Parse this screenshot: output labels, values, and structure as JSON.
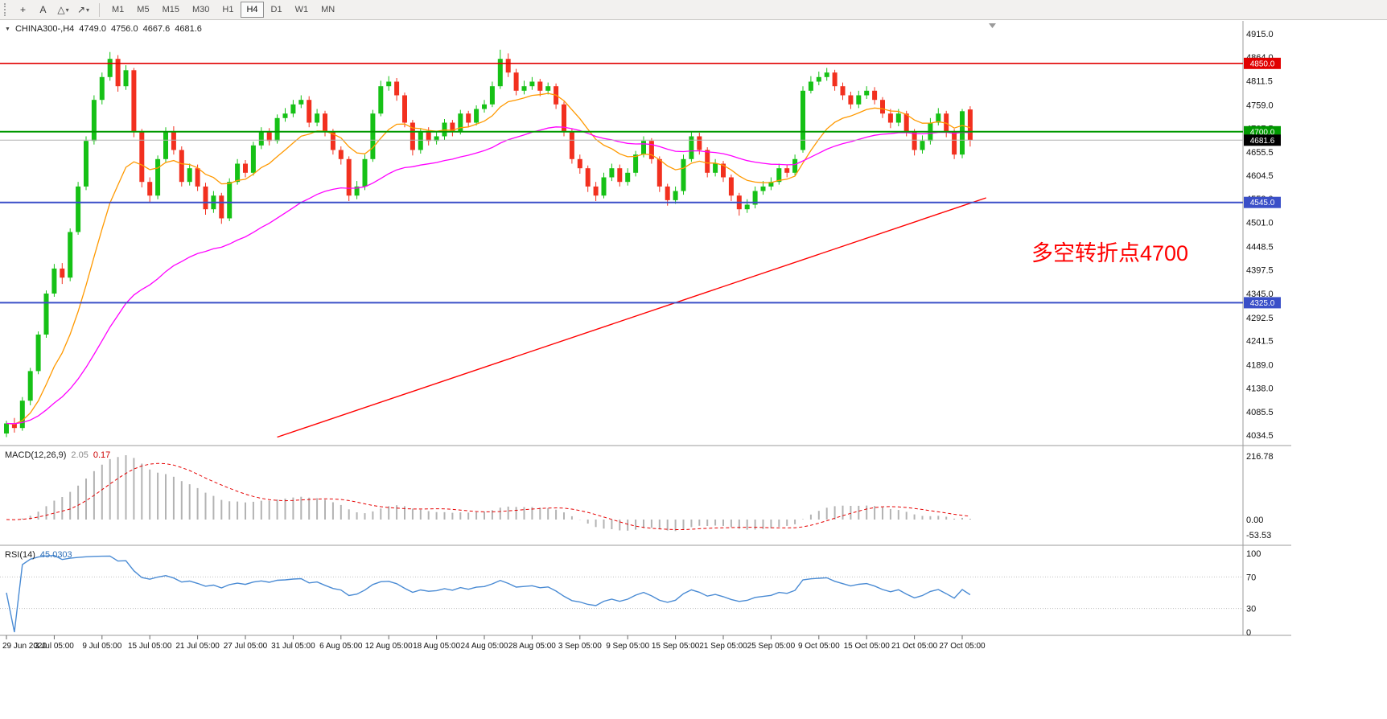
{
  "toolbar": {
    "tools": [
      {
        "name": "crosshair-tool",
        "icon": "crosshair-icon",
        "glyph": "+",
        "dropdown": false
      },
      {
        "name": "text-tool",
        "icon": "text-label-icon",
        "glyph": "A",
        "dropdown": false
      },
      {
        "name": "shapes-tool",
        "icon": "shapes-icon",
        "glyph": "△",
        "dropdown": true
      },
      {
        "name": "arrows-tool",
        "icon": "arrow-icon",
        "glyph": "↗",
        "dropdown": true
      }
    ],
    "timeframes": [
      "M1",
      "M5",
      "M15",
      "M30",
      "H1",
      "H4",
      "D1",
      "W1",
      "MN"
    ],
    "active_timeframe": "H4"
  },
  "chart": {
    "header": {
      "symbol": "CHINA300-,H4",
      "open": "4749.0",
      "high": "4756.0",
      "low": "4667.6",
      "close": "4681.6"
    },
    "annotation": {
      "text": "多空转折点4700",
      "color": "#ff0000"
    }
  },
  "indicators": {
    "macd": {
      "title": "MACD(12,26,9)",
      "value_main": "2.05",
      "value_signal": "0.17",
      "axis_labels": [
        "216.78",
        "0.00",
        "-53.53"
      ],
      "histogram_color": "#b3b3b3",
      "signal_color": "#e60000"
    },
    "rsi": {
      "title": "RSI(14)",
      "value": "45.0303",
      "axis_labels": [
        "100",
        "70",
        "30",
        "0"
      ],
      "levels": [
        70,
        30
      ],
      "line_color": "#4a8bd4",
      "level_color": "#c0c0c0"
    }
  },
  "chart_data": {
    "type": "candlestick",
    "symbol": "CHINA300-",
    "timeframe": "H4",
    "up_color": "#16c116",
    "down_color": "#f2301f",
    "ylim": [
      4015,
      4940
    ],
    "price_ticks": [
      4915.0,
      4864.0,
      4811.5,
      4759.0,
      4707.5,
      4655.5,
      4604.5,
      4553.0,
      4501.0,
      4448.5,
      4397.5,
      4345.0,
      4292.5,
      4241.5,
      4189.0,
      4138.0,
      4085.5,
      4034.5
    ],
    "time_labels": [
      "29 Jun 2020",
      "3 Jul 05:00",
      "9 Jul 05:00",
      "15 Jul 05:00",
      "21 Jul 05:00",
      "27 Jul 05:00",
      "31 Jul 05:00",
      "6 Aug 05:00",
      "12 Aug 05:00",
      "18 Aug 05:00",
      "24 Aug 05:00",
      "28 Aug 05:00",
      "3 Sep 05:00",
      "9 Sep 05:00",
      "15 Sep 05:00",
      "21 Sep 05:00",
      "25 Sep 05:00",
      "9 Oct 05:00",
      "15 Oct 05:00",
      "21 Oct 05:00",
      "27 Oct 05:00"
    ],
    "candles_per_label": 6,
    "levels": [
      {
        "price": 4850.0,
        "label": "4850.0",
        "color": "#e10000",
        "width": 1.6
      },
      {
        "price": 4700.0,
        "label": "4700.0",
        "color": "#009900",
        "width": 2
      },
      {
        "price": 4545.0,
        "label": "4545.0",
        "color": "#3a4fc8",
        "width": 2
      },
      {
        "price": 4325.0,
        "label": "4325.0",
        "color": "#3a4fc8",
        "width": 2
      }
    ],
    "current_price": {
      "value": 4681.6,
      "label": "4681.6",
      "line_color": "#b0b0b0",
      "badge_color": "#000000"
    },
    "ma_fast": {
      "type": "ema",
      "period": 12,
      "color": "#ff9900"
    },
    "ma_slow": {
      "type": "ema",
      "period": 40,
      "color": "#ff00ff"
    },
    "trendline": {
      "color": "#ff0000",
      "from_index": 34,
      "from_price": 4030,
      "to_index": 123,
      "to_price": 4555
    },
    "ohlc": [
      [
        4038,
        4066,
        4030,
        4060
      ],
      [
        4060,
        4072,
        4040,
        4050
      ],
      [
        4050,
        4118,
        4044,
        4110
      ],
      [
        4110,
        4182,
        4100,
        4175
      ],
      [
        4175,
        4262,
        4168,
        4255
      ],
      [
        4255,
        4352,
        4248,
        4345
      ],
      [
        4345,
        4410,
        4338,
        4400
      ],
      [
        4400,
        4412,
        4366,
        4380
      ],
      [
        4380,
        4488,
        4372,
        4480
      ],
      [
        4480,
        4590,
        4474,
        4580
      ],
      [
        4580,
        4690,
        4572,
        4680
      ],
      [
        4680,
        4780,
        4672,
        4770
      ],
      [
        4770,
        4830,
        4760,
        4820
      ],
      [
        4820,
        4875,
        4812,
        4860
      ],
      [
        4860,
        4868,
        4788,
        4800
      ],
      [
        4800,
        4846,
        4792,
        4835
      ],
      [
        4835,
        4840,
        4688,
        4700
      ],
      [
        4700,
        4706,
        4578,
        4590
      ],
      [
        4590,
        4600,
        4545,
        4560
      ],
      [
        4560,
        4648,
        4552,
        4640
      ],
      [
        4640,
        4710,
        4632,
        4700
      ],
      [
        4700,
        4712,
        4650,
        4660
      ],
      [
        4660,
        4668,
        4580,
        4590
      ],
      [
        4590,
        4630,
        4582,
        4620
      ],
      [
        4620,
        4628,
        4570,
        4580
      ],
      [
        4580,
        4588,
        4518,
        4530
      ],
      [
        4530,
        4570,
        4522,
        4560
      ],
      [
        4560,
        4566,
        4498,
        4510
      ],
      [
        4510,
        4598,
        4504,
        4590
      ],
      [
        4590,
        4640,
        4584,
        4630
      ],
      [
        4630,
        4638,
        4600,
        4610
      ],
      [
        4610,
        4678,
        4604,
        4670
      ],
      [
        4670,
        4710,
        4662,
        4700
      ],
      [
        4700,
        4708,
        4670,
        4680
      ],
      [
        4680,
        4738,
        4674,
        4730
      ],
      [
        4730,
        4752,
        4722,
        4740
      ],
      [
        4740,
        4770,
        4732,
        4760
      ],
      [
        4760,
        4780,
        4752,
        4770
      ],
      [
        4770,
        4778,
        4710,
        4720
      ],
      [
        4720,
        4750,
        4712,
        4740
      ],
      [
        4740,
        4746,
        4690,
        4700
      ],
      [
        4700,
        4706,
        4650,
        4660
      ],
      [
        4660,
        4668,
        4628,
        4640
      ],
      [
        4640,
        4646,
        4548,
        4560
      ],
      [
        4560,
        4592,
        4552,
        4580
      ],
      [
        4580,
        4650,
        4572,
        4640
      ],
      [
        4640,
        4748,
        4634,
        4740
      ],
      [
        4740,
        4812,
        4734,
        4800
      ],
      [
        4800,
        4822,
        4790,
        4810
      ],
      [
        4810,
        4818,
        4768,
        4780
      ],
      [
        4780,
        4786,
        4710,
        4720
      ],
      [
        4720,
        4726,
        4648,
        4660
      ],
      [
        4660,
        4708,
        4652,
        4700
      ],
      [
        4700,
        4710,
        4670,
        4680
      ],
      [
        4680,
        4700,
        4672,
        4690
      ],
      [
        4690,
        4728,
        4682,
        4720
      ],
      [
        4720,
        4726,
        4690,
        4700
      ],
      [
        4700,
        4748,
        4694,
        4740
      ],
      [
        4740,
        4746,
        4710,
        4720
      ],
      [
        4720,
        4758,
        4714,
        4750
      ],
      [
        4750,
        4770,
        4742,
        4760
      ],
      [
        4760,
        4810,
        4754,
        4800
      ],
      [
        4800,
        4880,
        4794,
        4860
      ],
      [
        4860,
        4872,
        4820,
        4830
      ],
      [
        4830,
        4838,
        4780,
        4790
      ],
      [
        4790,
        4812,
        4782,
        4800
      ],
      [
        4800,
        4820,
        4792,
        4810
      ],
      [
        4810,
        4816,
        4778,
        4790
      ],
      [
        4790,
        4808,
        4782,
        4800
      ],
      [
        4800,
        4806,
        4750,
        4760
      ],
      [
        4760,
        4766,
        4690,
        4700
      ],
      [
        4700,
        4706,
        4630,
        4640
      ],
      [
        4640,
        4650,
        4608,
        4620
      ],
      [
        4620,
        4626,
        4568,
        4580
      ],
      [
        4580,
        4590,
        4548,
        4560
      ],
      [
        4560,
        4610,
        4554,
        4600
      ],
      [
        4600,
        4630,
        4592,
        4620
      ],
      [
        4620,
        4628,
        4580,
        4590
      ],
      [
        4590,
        4620,
        4582,
        4610
      ],
      [
        4610,
        4658,
        4602,
        4650
      ],
      [
        4650,
        4690,
        4644,
        4680
      ],
      [
        4680,
        4686,
        4630,
        4640
      ],
      [
        4640,
        4646,
        4568,
        4580
      ],
      [
        4580,
        4586,
        4538,
        4550
      ],
      [
        4550,
        4580,
        4542,
        4570
      ],
      [
        4570,
        4650,
        4562,
        4640
      ],
      [
        4640,
        4700,
        4634,
        4690
      ],
      [
        4690,
        4698,
        4650,
        4660
      ],
      [
        4660,
        4666,
        4600,
        4610
      ],
      [
        4610,
        4640,
        4602,
        4630
      ],
      [
        4630,
        4636,
        4590,
        4600
      ],
      [
        4600,
        4606,
        4548,
        4560
      ],
      [
        4560,
        4566,
        4516,
        4530
      ],
      [
        4530,
        4552,
        4522,
        4540
      ],
      [
        4540,
        4580,
        4532,
        4570
      ],
      [
        4570,
        4592,
        4562,
        4580
      ],
      [
        4580,
        4600,
        4572,
        4590
      ],
      [
        4590,
        4630,
        4584,
        4620
      ],
      [
        4620,
        4628,
        4600,
        4610
      ],
      [
        4610,
        4650,
        4604,
        4640
      ],
      [
        4660,
        4800,
        4654,
        4790
      ],
      [
        4790,
        4822,
        4784,
        4810
      ],
      [
        4810,
        4832,
        4802,
        4820
      ],
      [
        4820,
        4840,
        4812,
        4830
      ],
      [
        4830,
        4836,
        4790,
        4800
      ],
      [
        4800,
        4808,
        4770,
        4780
      ],
      [
        4780,
        4788,
        4750,
        4760
      ],
      [
        4760,
        4790,
        4752,
        4780
      ],
      [
        4780,
        4800,
        4772,
        4790
      ],
      [
        4790,
        4798,
        4760,
        4770
      ],
      [
        4770,
        4776,
        4730,
        4740
      ],
      [
        4740,
        4750,
        4708,
        4720
      ],
      [
        4720,
        4750,
        4712,
        4740
      ],
      [
        4740,
        4746,
        4690,
        4700
      ],
      [
        4700,
        4706,
        4648,
        4660
      ],
      [
        4660,
        4692,
        4652,
        4680
      ],
      [
        4680,
        4730,
        4672,
        4720
      ],
      [
        4720,
        4752,
        4714,
        4740
      ],
      [
        4740,
        4746,
        4688,
        4700
      ],
      [
        4700,
        4706,
        4640,
        4650
      ],
      [
        4650,
        4750,
        4642,
        4745
      ],
      [
        4749,
        4756,
        4667.6,
        4681.6
      ]
    ]
  }
}
